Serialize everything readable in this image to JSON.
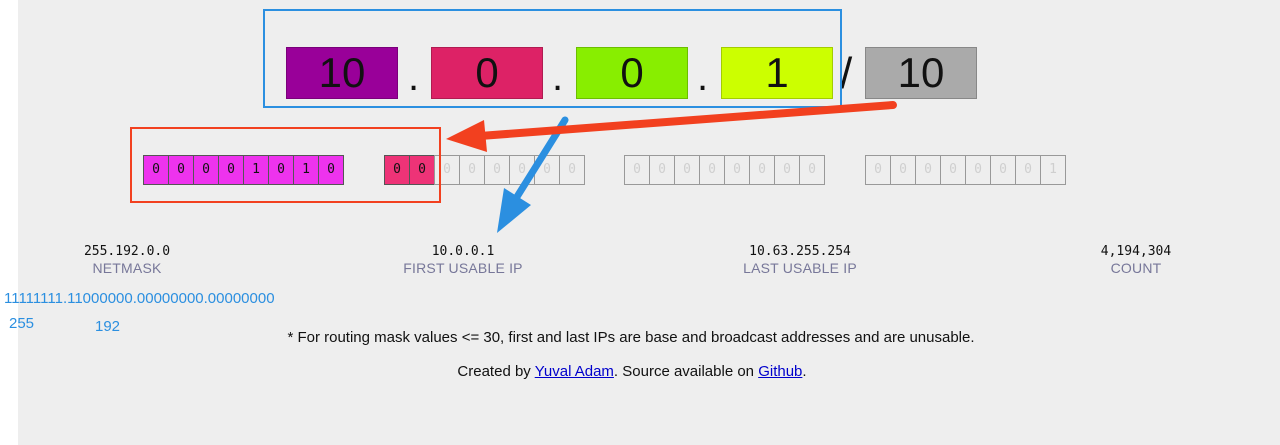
{
  "address": {
    "octets": [
      {
        "value": "10",
        "color": "#990099"
      },
      {
        "value": "0",
        "color": "#dd2266"
      },
      {
        "value": "0",
        "color": "#88ee00"
      },
      {
        "value": "1",
        "color": "#ccff00"
      }
    ],
    "separator": ".",
    "slash": "/",
    "cidr": {
      "value": "10",
      "color": "#aaaaaa"
    }
  },
  "binary": {
    "groups": [
      [
        "0",
        "0",
        "0",
        "0",
        "1",
        "0",
        "1",
        "0"
      ],
      [
        "0",
        "0",
        "0",
        "0",
        "0",
        "0",
        "0",
        "0"
      ],
      [
        "0",
        "0",
        "0",
        "0",
        "0",
        "0",
        "0",
        "0"
      ],
      [
        "0",
        "0",
        "0",
        "0",
        "0",
        "0",
        "0",
        "1"
      ]
    ],
    "mask_bits": 10
  },
  "stats": {
    "netmask": {
      "value": "255.192.0.0",
      "label": "NETMASK"
    },
    "first": {
      "value": "10.0.0.1",
      "label": "FIRST USABLE IP"
    },
    "last": {
      "value": "10.63.255.254",
      "label": "LAST USABLE IP"
    },
    "count": {
      "value": "4,194,304",
      "label": "COUNT"
    }
  },
  "annotation": {
    "binary_mask": "11111111.11000000.00000000.00000000",
    "num1": "255",
    "num2": "192",
    "color": "#2b8fe0"
  },
  "footer": {
    "note": "* For routing mask values <= 30, first and last IPs are base and broadcast addresses and are unusable.",
    "created_prefix": "Created by ",
    "author_link": "Yuval Adam",
    "middle": ". Source available on ",
    "github_link": "Github",
    "suffix": "."
  },
  "overlay_colors": {
    "blue": "#2b8fe0",
    "red": "#f2401f"
  }
}
